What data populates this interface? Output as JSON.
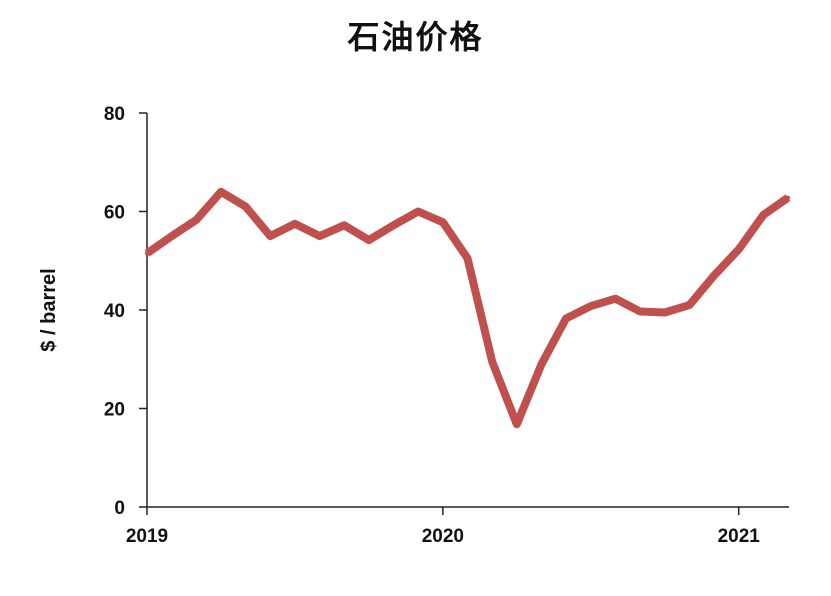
{
  "chart_data": {
    "type": "line",
    "title": "石油价格",
    "xlabel": "",
    "ylabel": "$ / barrel",
    "xlim": [
      2019.0,
      2021.17
    ],
    "ylim": [
      0,
      80
    ],
    "y_ticks": [
      0,
      20,
      40,
      60,
      80
    ],
    "x_ticks": [
      2019,
      2020,
      2021
    ],
    "x_tick_labels": [
      "2019",
      "2020",
      "2021"
    ],
    "grid": false,
    "color": "#c0504d",
    "series": [
      {
        "x": [
          "2019-01",
          "2019-02",
          "2019-03",
          "2019-04",
          "2019-05",
          "2019-06",
          "2019-07",
          "2019-08",
          "2019-09",
          "2019-10",
          "2019-11",
          "2019-12",
          "2020-01",
          "2020-02",
          "2020-03",
          "2020-04",
          "2020-05",
          "2020-06",
          "2020-07",
          "2020-08",
          "2020-09",
          "2020-10",
          "2020-11",
          "2020-12",
          "2021-01",
          "2021-02",
          "2021-03"
        ],
        "values": [
          51.5,
          55,
          58.3,
          64,
          61,
          55,
          57.5,
          55,
          57.2,
          54.2,
          57.2,
          60,
          57.8,
          50.5,
          29.5,
          16.8,
          29,
          38.3,
          40.8,
          42.3,
          39.7,
          39.5,
          41,
          47,
          52.3,
          59.3,
          62.8
        ]
      }
    ]
  }
}
